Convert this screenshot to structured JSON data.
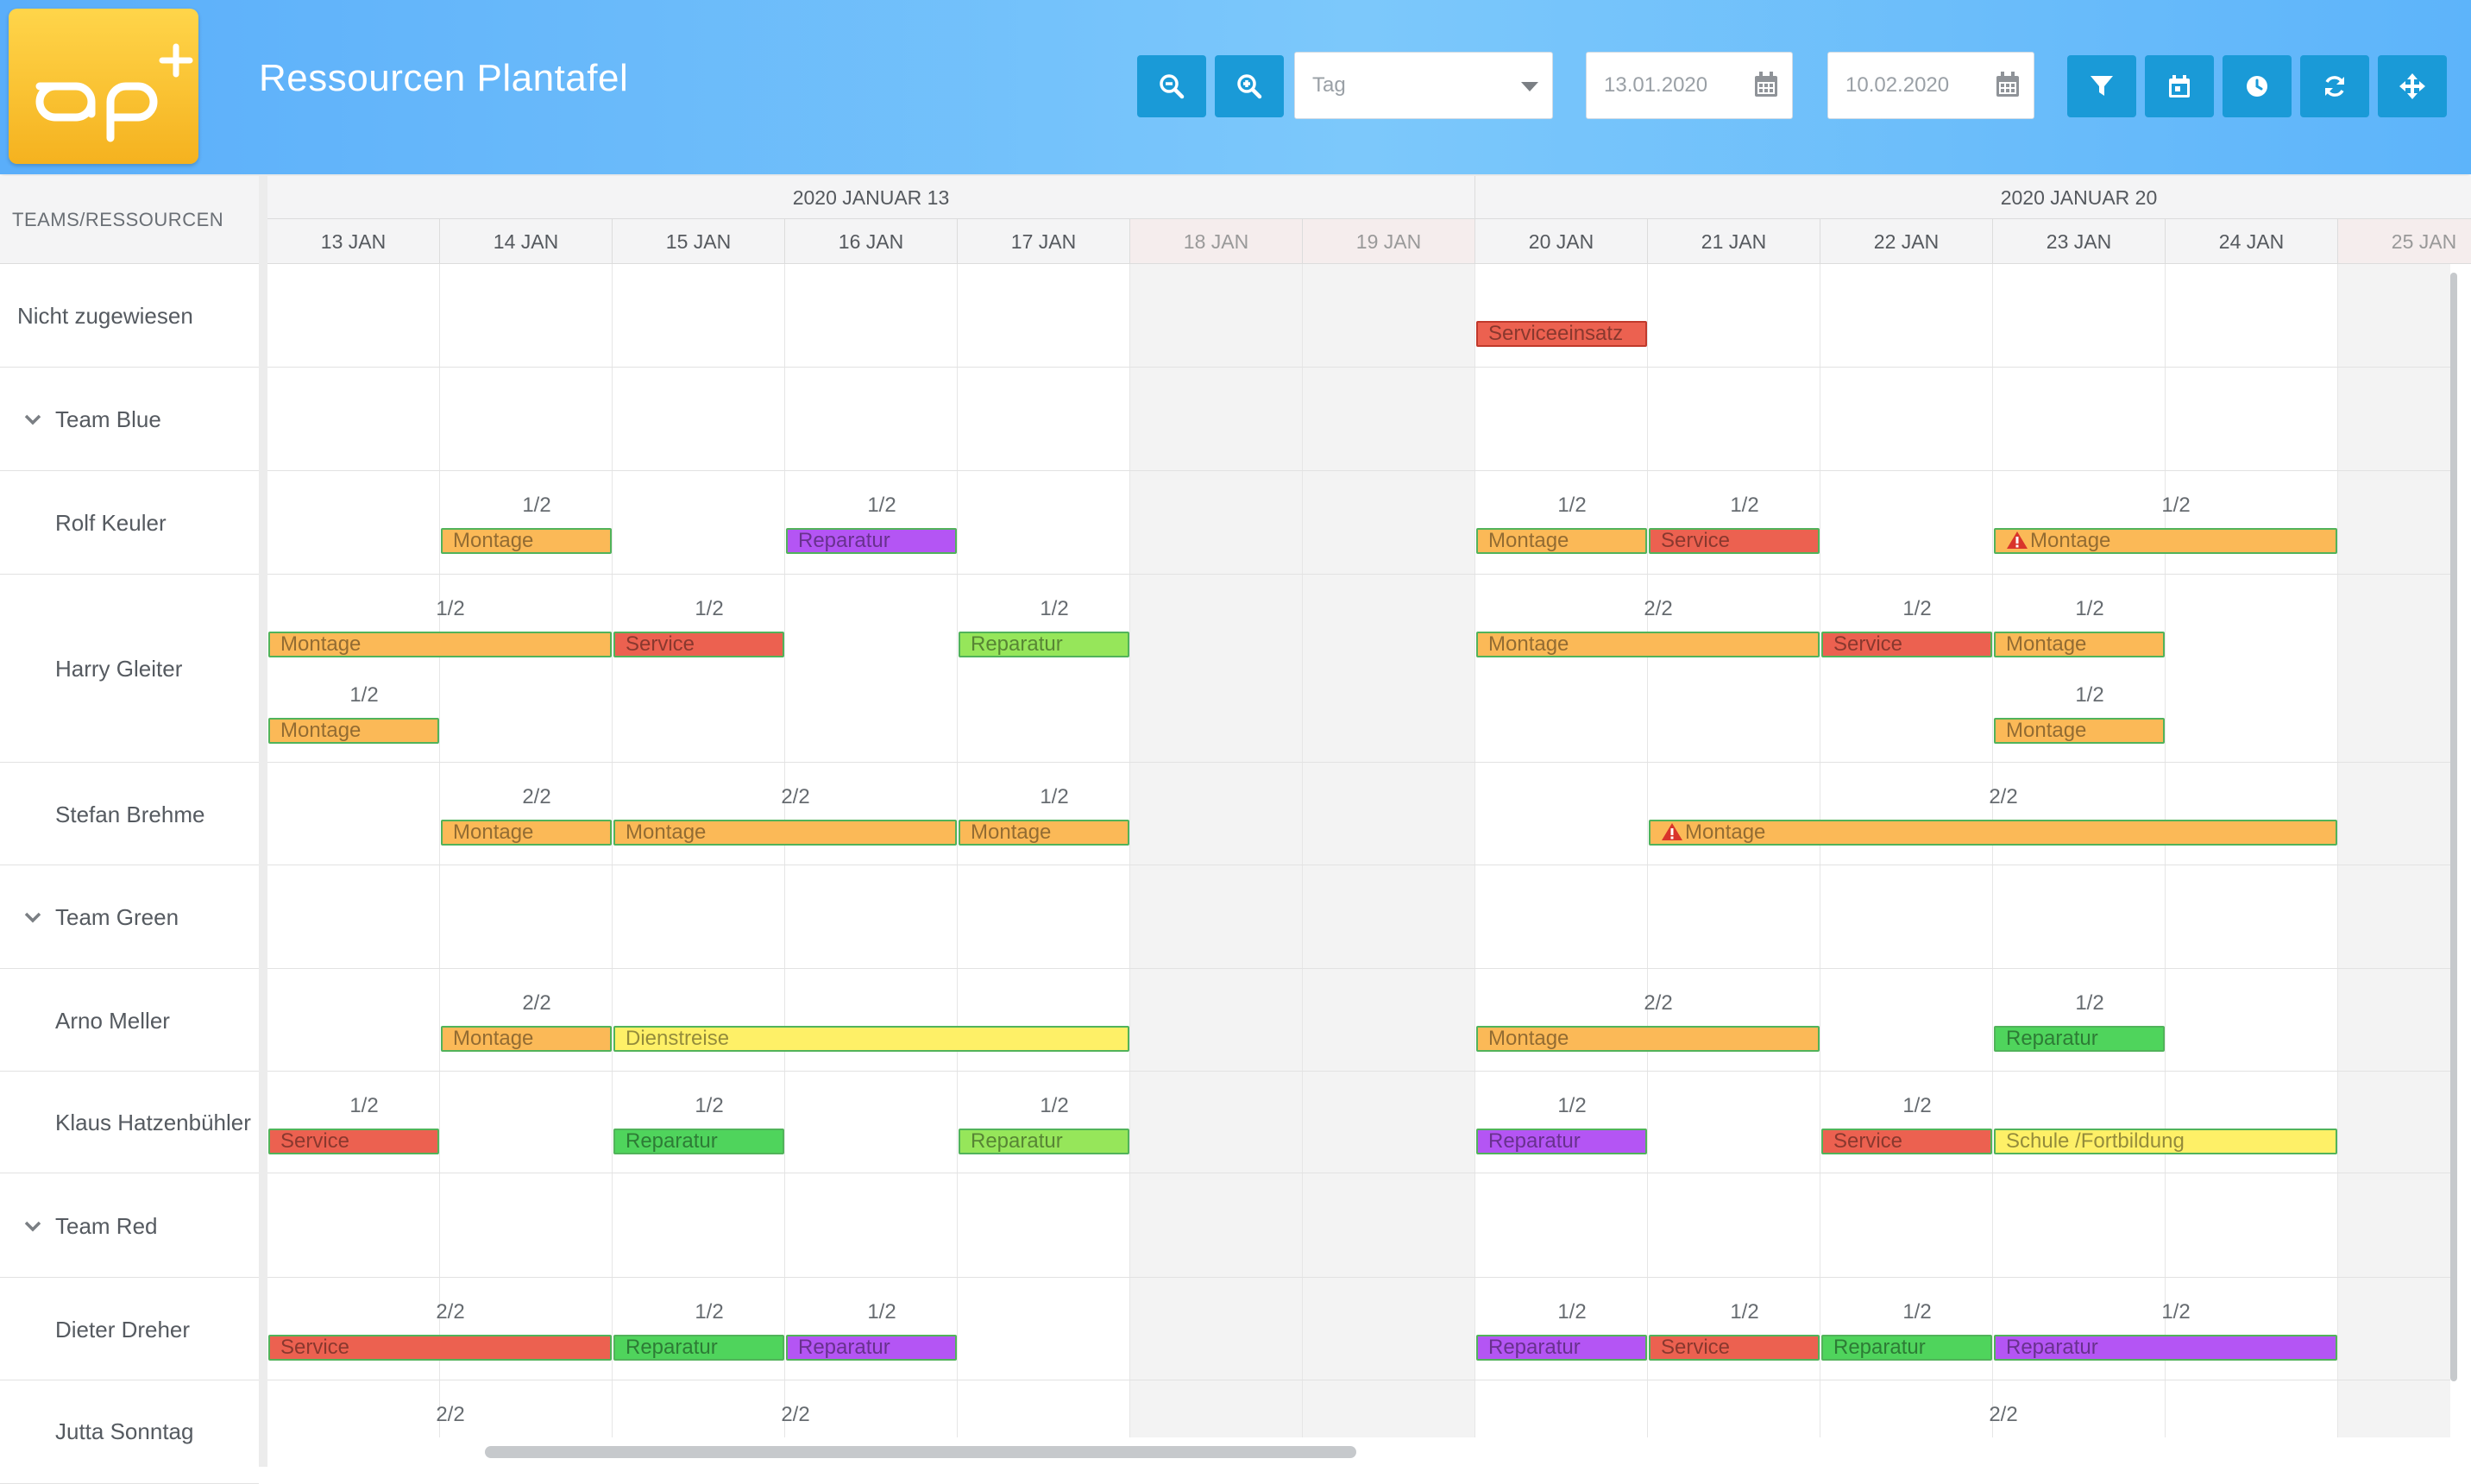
{
  "header": {
    "title": "Ressourcen Plantafel",
    "logo_text": "ap+",
    "view_select": {
      "value": "Tag"
    },
    "date_from": "13.01.2020",
    "date_to": "10.02.2020",
    "buttons": [
      "zoom-out",
      "zoom-in",
      "filter",
      "calendar",
      "clock",
      "refresh",
      "move"
    ]
  },
  "left_panel": {
    "header": "TEAMS/RESSOURCEN",
    "rows": [
      {
        "label": "Nicht zugewiesen",
        "type": "resource",
        "indent": 0
      },
      {
        "label": "Team Blue",
        "type": "team",
        "indent": 1
      },
      {
        "label": "Rolf Keuler",
        "type": "resource",
        "indent": 1
      },
      {
        "label": "Harry Gleiter",
        "type": "resource",
        "indent": 1
      },
      {
        "label": "Stefan Brehme",
        "type": "resource",
        "indent": 1
      },
      {
        "label": "Team Green",
        "type": "team",
        "indent": 1
      },
      {
        "label": "Arno Meller",
        "type": "resource",
        "indent": 1
      },
      {
        "label": "Klaus Hatzenbühler",
        "type": "resource",
        "indent": 1
      },
      {
        "label": "Team Red",
        "type": "team",
        "indent": 1
      },
      {
        "label": "Dieter Dreher",
        "type": "resource",
        "indent": 1
      },
      {
        "label": "Jutta Sonntag",
        "type": "resource",
        "indent": 1
      }
    ]
  },
  "timeline": {
    "weeks": [
      {
        "label": "2020 JANUAR 13"
      },
      {
        "label": "2020 JANUAR 20"
      }
    ],
    "days": [
      {
        "label": "13 JAN",
        "weekend": false
      },
      {
        "label": "14 JAN",
        "weekend": false
      },
      {
        "label": "15 JAN",
        "weekend": false
      },
      {
        "label": "16 JAN",
        "weekend": false
      },
      {
        "label": "17 JAN",
        "weekend": false
      },
      {
        "label": "18 JAN",
        "weekend": true
      },
      {
        "label": "19 JAN",
        "weekend": true
      },
      {
        "label": "20 JAN",
        "weekend": false
      },
      {
        "label": "21 JAN",
        "weekend": false
      },
      {
        "label": "22 JAN",
        "weekend": false
      },
      {
        "label": "23 JAN",
        "weekend": false
      },
      {
        "label": "24 JAN",
        "weekend": false
      },
      {
        "label": "25 JAN",
        "weekend": true
      }
    ]
  },
  "colors": {
    "Montage": "#fbb957",
    "Service": "#ec6150",
    "Reparatur_purple": "#b455f4",
    "Reparatur_green": "#4fd45c",
    "Reparatur_lightgreen": "#96e65a",
    "Dienstreise": "#fef067",
    "Schule": "#fef067",
    "Serviceeinsatz": "#ec6150",
    "border_green": "#51b35a",
    "border_red": "#c0392b"
  },
  "events": [
    {
      "row": 0,
      "lane": 0,
      "start": 7,
      "days": 1,
      "label": "Serviceeinsatz",
      "color": "Serviceeinsatz",
      "border": "border_red",
      "capacity": ""
    },
    {
      "row": 2,
      "lane": 0,
      "start": 1,
      "days": 1,
      "label": "Montage",
      "color": "Montage",
      "capacity": "1/2"
    },
    {
      "row": 2,
      "lane": 0,
      "start": 3,
      "days": 1,
      "label": "Reparatur",
      "color": "Reparatur_purple",
      "capacity": "1/2"
    },
    {
      "row": 2,
      "lane": 0,
      "start": 7,
      "days": 1,
      "label": "Montage",
      "color": "Montage",
      "capacity": "1/2"
    },
    {
      "row": 2,
      "lane": 0,
      "start": 8,
      "days": 1,
      "label": "Service",
      "color": "Service",
      "capacity": "1/2"
    },
    {
      "row": 2,
      "lane": 0,
      "start": 10,
      "days": 2,
      "label": "Montage",
      "color": "Montage",
      "capacity": "1/2",
      "warning": true
    },
    {
      "row": 3,
      "lane": 0,
      "start": 0,
      "days": 2,
      "label": "Montage",
      "color": "Montage",
      "capacity": "1/2"
    },
    {
      "row": 3,
      "lane": 0,
      "start": 2,
      "days": 1,
      "label": "Service",
      "color": "Service",
      "capacity": "1/2"
    },
    {
      "row": 3,
      "lane": 0,
      "start": 4,
      "days": 1,
      "label": "Reparatur",
      "color": "Reparatur_lightgreen",
      "capacity": "1/2"
    },
    {
      "row": 3,
      "lane": 0,
      "start": 7,
      "days": 2,
      "label": "Montage",
      "color": "Montage",
      "capacity": "2/2"
    },
    {
      "row": 3,
      "lane": 0,
      "start": 9,
      "days": 1,
      "label": "Service",
      "color": "Service",
      "capacity": "1/2"
    },
    {
      "row": 3,
      "lane": 0,
      "start": 10,
      "days": 1,
      "label": "Montage",
      "color": "Montage",
      "capacity": "1/2"
    },
    {
      "row": 3,
      "lane": 1,
      "start": 0,
      "days": 1,
      "label": "Montage",
      "color": "Montage",
      "capacity": "1/2"
    },
    {
      "row": 3,
      "lane": 1,
      "start": 10,
      "days": 1,
      "label": "Montage",
      "color": "Montage",
      "capacity": "1/2"
    },
    {
      "row": 4,
      "lane": 0,
      "start": 1,
      "days": 1,
      "label": "Montage",
      "color": "Montage",
      "capacity": "2/2"
    },
    {
      "row": 4,
      "lane": 0,
      "start": 2,
      "days": 2,
      "label": "Montage",
      "color": "Montage",
      "capacity": "2/2"
    },
    {
      "row": 4,
      "lane": 0,
      "start": 4,
      "days": 1,
      "label": "Montage",
      "color": "Montage",
      "capacity": "1/2"
    },
    {
      "row": 4,
      "lane": 0,
      "start": 8,
      "days": 4,
      "label": "Montage",
      "color": "Montage",
      "capacity": "2/2",
      "warning": true
    },
    {
      "row": 6,
      "lane": 0,
      "start": 1,
      "days": 1,
      "label": "Montage",
      "color": "Montage",
      "capacity": "2/2"
    },
    {
      "row": 6,
      "lane": 0,
      "start": 2,
      "days": 3,
      "label": "Dienstreise",
      "color": "Dienstreise",
      "capacity": ""
    },
    {
      "row": 6,
      "lane": 0,
      "start": 7,
      "days": 2,
      "label": "Montage",
      "color": "Montage",
      "capacity": "2/2"
    },
    {
      "row": 6,
      "lane": 0,
      "start": 10,
      "days": 1,
      "label": "Reparatur",
      "color": "Reparatur_green",
      "capacity": "1/2"
    },
    {
      "row": 7,
      "lane": 0,
      "start": 0,
      "days": 1,
      "label": "Service",
      "color": "Service",
      "capacity": "1/2"
    },
    {
      "row": 7,
      "lane": 0,
      "start": 2,
      "days": 1,
      "label": "Reparatur",
      "color": "Reparatur_green",
      "capacity": "1/2"
    },
    {
      "row": 7,
      "lane": 0,
      "start": 4,
      "days": 1,
      "label": "Reparatur",
      "color": "Reparatur_lightgreen",
      "capacity": "1/2"
    },
    {
      "row": 7,
      "lane": 0,
      "start": 7,
      "days": 1,
      "label": "Reparatur",
      "color": "Reparatur_purple",
      "capacity": "1/2"
    },
    {
      "row": 7,
      "lane": 0,
      "start": 9,
      "days": 1,
      "label": "Service",
      "color": "Service",
      "capacity": "1/2"
    },
    {
      "row": 7,
      "lane": 0,
      "start": 10,
      "days": 2,
      "label": "Schule /Fortbildung",
      "color": "Schule",
      "capacity": ""
    },
    {
      "row": 9,
      "lane": 0,
      "start": 0,
      "days": 2,
      "label": "Service",
      "color": "Service",
      "capacity": "2/2"
    },
    {
      "row": 9,
      "lane": 0,
      "start": 2,
      "days": 1,
      "label": "Reparatur",
      "color": "Reparatur_green",
      "capacity": "1/2"
    },
    {
      "row": 9,
      "lane": 0,
      "start": 3,
      "days": 1,
      "label": "Reparatur",
      "color": "Reparatur_purple",
      "capacity": "1/2"
    },
    {
      "row": 9,
      "lane": 0,
      "start": 7,
      "days": 1,
      "label": "Reparatur",
      "color": "Reparatur_purple",
      "capacity": "1/2"
    },
    {
      "row": 9,
      "lane": 0,
      "start": 8,
      "days": 1,
      "label": "Service",
      "color": "Service",
      "capacity": "1/2"
    },
    {
      "row": 9,
      "lane": 0,
      "start": 9,
      "days": 1,
      "label": "Reparatur",
      "color": "Reparatur_green",
      "capacity": "1/2"
    },
    {
      "row": 9,
      "lane": 0,
      "start": 10,
      "days": 2,
      "label": "Reparatur",
      "color": "Reparatur_purple",
      "capacity": "1/2"
    },
    {
      "row": 10,
      "lane": 0,
      "start": 0,
      "days": 2,
      "label": "",
      "color": "",
      "capacity": "2/2"
    },
    {
      "row": 10,
      "lane": 0,
      "start": 2,
      "days": 2,
      "label": "",
      "color": "",
      "capacity": "2/2"
    },
    {
      "row": 10,
      "lane": 0,
      "start": 8,
      "days": 4,
      "label": "",
      "color": "",
      "capacity": "2/2"
    }
  ]
}
